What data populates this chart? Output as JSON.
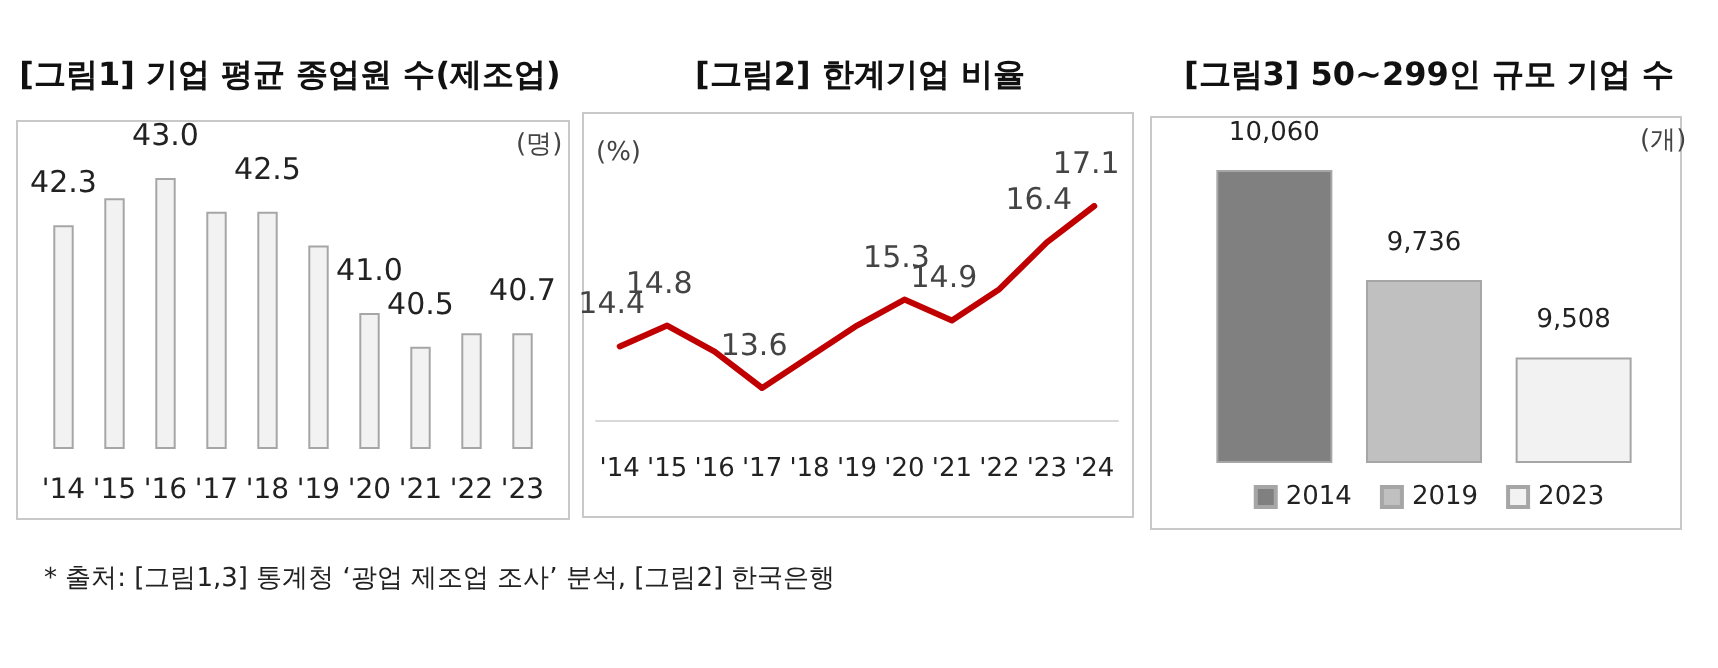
{
  "chart_data": [
    {
      "type": "bar",
      "title": "[그림1] 기업 평균 종업원 수(제조업)",
      "ylabel": "(명)",
      "categories": [
        "'14",
        "'15",
        "'16",
        "'17",
        "'18",
        "'19",
        "'20",
        "'21",
        "'22",
        "'23"
      ],
      "values": [
        42.3,
        42.7,
        43.0,
        42.5,
        42.5,
        42.0,
        41.0,
        40.5,
        40.7,
        40.7
      ],
      "value_labels": [
        "42.3",
        null,
        "43.0",
        null,
        "42.5",
        null,
        "41.0",
        "40.5",
        null,
        "40.7"
      ],
      "color": "#f2f2f2",
      "ylim": [
        39,
        43.0
      ],
      "tick_labels": "x",
      "annotations": [
        "* 출처: [그림1,3] 통계청 ‘광업 제조업 조사’ 분석, [그림2] 한국은행"
      ]
    },
    {
      "type": "line",
      "title": "[그림2] 한계기업 비율",
      "ylabel": "(%)",
      "categories": [
        "'14",
        "'15",
        "'16",
        "'17",
        "'18",
        "'19",
        "'20",
        "'21",
        "'22",
        "'23",
        "'24"
      ],
      "values": [
        14.4,
        14.8,
        14.3,
        13.6,
        14.2,
        14.8,
        15.3,
        14.9,
        15.5,
        16.4,
        17.1
      ],
      "value_labels": [
        "14.4",
        "14.8",
        null,
        "13.6",
        null,
        null,
        "15.3",
        "14.9",
        null,
        "16.4",
        "17.1"
      ],
      "color": "#c00000",
      "tick_labels": "x"
    },
    {
      "type": "bar",
      "title": "[그림3] 50~299인 규모 기업 수",
      "ylabel": "(개)",
      "categories": [
        null
      ],
      "series": [
        {
          "name": "2014",
          "color": "#808080",
          "values": [
            10060
          ],
          "value_labels": [
            "10,060"
          ]
        },
        {
          "name": "2019",
          "color": "#c0c0c0",
          "values": [
            9736
          ],
          "value_labels": [
            "9,736"
          ]
        },
        {
          "name": "2023",
          "color": "#f2f2f2",
          "values": [
            9508
          ],
          "value_labels": [
            "9,508"
          ]
        }
      ],
      "ylim": [
        9200,
        10060
      ],
      "tick_labels": false,
      "legend": "bottom"
    }
  ]
}
